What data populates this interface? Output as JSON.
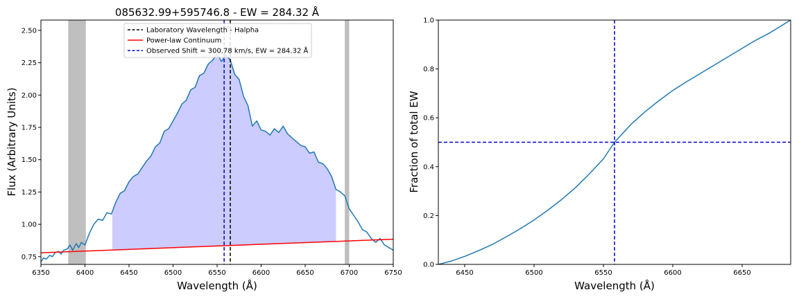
{
  "colors": {
    "spectrum": "#1f77b4",
    "continuum": "#ff0000",
    "fill": "#ccccff",
    "masked_region": "#bfbfbf",
    "lab_line": "#000000",
    "observed_line": "#0000cc",
    "fraction_curve": "#1f77b4"
  },
  "chart_data": [
    {
      "type": "line",
      "title": "085632.99+595746.8 - EW = 284.32 Å",
      "xlabel": "Wavelength (Å)",
      "ylabel": "Flux (Arbitrary Units)",
      "xlim": [
        6350,
        6750
      ],
      "ylim": [
        0.69,
        2.58
      ],
      "xticks": [
        6350,
        6400,
        6450,
        6500,
        6550,
        6600,
        6650,
        6700,
        6750
      ],
      "yticks": [
        0.75,
        1.0,
        1.25,
        1.5,
        1.75,
        2.0,
        2.25,
        2.5
      ],
      "ytick_labels": [
        "0.75",
        "1.00",
        "1.25",
        "1.50",
        "1.75",
        "2.00",
        "2.25",
        "2.50"
      ],
      "grid": false,
      "legend_position": "top-center",
      "legend": [
        {
          "label": "Laboratory Wavelength - Halpha",
          "style": "dashed",
          "color": "#000000"
        },
        {
          "label": "Power-law Continuum",
          "style": "solid",
          "color": "#ff0000"
        },
        {
          "label": "Observed Shift = 300.78 km/s, EW = 284.32 Å",
          "style": "dashed",
          "color": "#0000cc"
        }
      ],
      "masked_regions": [
        [
          6381,
          6401
        ],
        [
          6695,
          6700
        ]
      ],
      "integration_region": [
        6431,
        6685
      ],
      "lab_wavelength": 6565,
      "observed_wavelength": 6558,
      "continuum": {
        "x": [
          6350,
          6750
        ],
        "y": [
          0.78,
          0.885
        ]
      },
      "series": [
        {
          "name": "spectrum",
          "x": [
            6350,
            6353,
            6356,
            6360,
            6363,
            6366,
            6370,
            6373,
            6376,
            6380,
            6383,
            6386,
            6390,
            6393,
            6396,
            6400,
            6405,
            6410,
            6415,
            6420,
            6425,
            6430,
            6435,
            6440,
            6445,
            6450,
            6455,
            6460,
            6465,
            6470,
            6475,
            6480,
            6485,
            6490,
            6495,
            6500,
            6505,
            6510,
            6515,
            6520,
            6525,
            6530,
            6535,
            6540,
            6545,
            6550,
            6555,
            6560,
            6565,
            6570,
            6575,
            6580,
            6585,
            6590,
            6595,
            6600,
            6605,
            6610,
            6615,
            6620,
            6625,
            6630,
            6635,
            6640,
            6645,
            6650,
            6655,
            6660,
            6665,
            6670,
            6675,
            6680,
            6685,
            6690,
            6695,
            6700,
            6705,
            6710,
            6715,
            6720,
            6725,
            6730,
            6735,
            6740,
            6745,
            6750
          ],
          "y": [
            0.71,
            0.74,
            0.73,
            0.76,
            0.75,
            0.78,
            0.79,
            0.77,
            0.8,
            0.81,
            0.84,
            0.8,
            0.85,
            0.82,
            0.86,
            0.84,
            0.93,
            1.0,
            1.04,
            1.03,
            1.09,
            1.08,
            1.17,
            1.24,
            1.26,
            1.33,
            1.37,
            1.39,
            1.44,
            1.49,
            1.53,
            1.6,
            1.63,
            1.72,
            1.74,
            1.8,
            1.86,
            1.93,
            1.96,
            2.04,
            2.06,
            2.15,
            2.17,
            2.24,
            2.27,
            2.32,
            2.26,
            2.31,
            2.27,
            2.16,
            2.12,
            1.99,
            1.92,
            1.76,
            1.8,
            1.73,
            1.72,
            1.69,
            1.74,
            1.71,
            1.76,
            1.7,
            1.67,
            1.64,
            1.61,
            1.6,
            1.55,
            1.56,
            1.48,
            1.47,
            1.43,
            1.37,
            1.27,
            1.25,
            1.22,
            1.12,
            1.07,
            1.02,
            0.96,
            0.94,
            0.89,
            0.86,
            0.89,
            0.84,
            0.82,
            0.8
          ]
        }
      ]
    },
    {
      "type": "line",
      "title": "",
      "xlabel": "Wavelength (Å)",
      "ylabel": "Fraction of total EW",
      "xlim": [
        6431,
        6685
      ],
      "ylim": [
        0.0,
        1.0
      ],
      "xticks": [
        6450,
        6500,
        6550,
        6600,
        6650
      ],
      "yticks": [
        0.0,
        0.2,
        0.4,
        0.6,
        0.8,
        1.0
      ],
      "ytick_labels": [
        "0.0",
        "0.2",
        "0.4",
        "0.6",
        "0.8",
        "1.0"
      ],
      "grid": false,
      "hline": 0.5,
      "vline": 6558,
      "series": [
        {
          "name": "fraction",
          "x": [
            6431,
            6440,
            6450,
            6460,
            6470,
            6480,
            6490,
            6500,
            6510,
            6520,
            6530,
            6540,
            6550,
            6558,
            6570,
            6580,
            6590,
            6600,
            6610,
            6620,
            6630,
            6640,
            6650,
            6660,
            6670,
            6685
          ],
          "y": [
            0.0,
            0.013,
            0.033,
            0.056,
            0.082,
            0.113,
            0.146,
            0.182,
            0.222,
            0.266,
            0.315,
            0.371,
            0.432,
            0.5,
            0.574,
            0.625,
            0.67,
            0.712,
            0.748,
            0.782,
            0.816,
            0.85,
            0.884,
            0.918,
            0.948,
            1.0
          ]
        }
      ]
    }
  ]
}
